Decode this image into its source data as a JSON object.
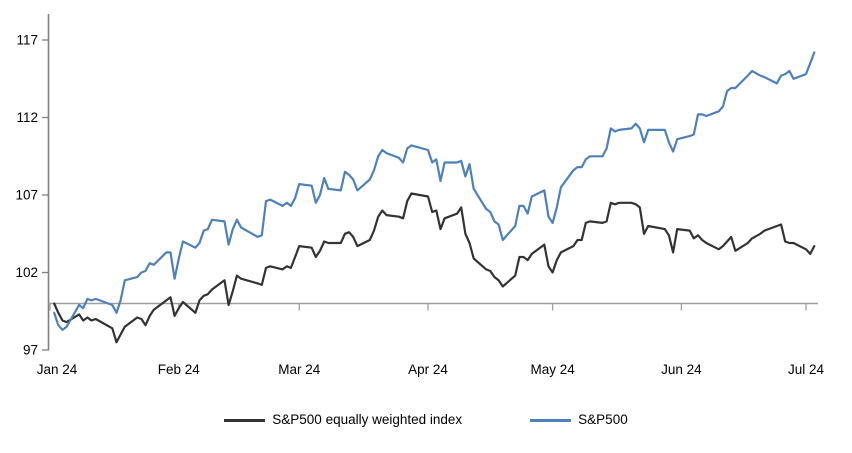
{
  "chart_data": {
    "type": "line",
    "title": "",
    "xlabel": "",
    "ylabel": "",
    "x_tick_labels": [
      "Jan 24",
      "Feb 24",
      "Mar 24",
      "Apr 24",
      "May 24",
      "Jun 24",
      "Jul 24"
    ],
    "x_tick_doy": [
      1,
      32,
      61,
      92,
      122,
      153,
      183
    ],
    "y_ticks": [
      97,
      102,
      107,
      112,
      117
    ],
    "ylim": [
      97,
      118.7
    ],
    "baseline_value": 100,
    "grid": false,
    "legend_position": "bottom-center",
    "style": {
      "axis_color": "#7f7f7f",
      "baseline_color": "#a0a0a0",
      "text_color": "#000000",
      "line_width": 2.2
    },
    "x_doy": [
      2,
      3,
      4,
      5,
      8,
      9,
      10,
      11,
      12,
      16,
      17,
      18,
      19,
      22,
      23,
      24,
      25,
      26,
      29,
      30,
      31,
      32,
      33,
      36,
      37,
      38,
      39,
      40,
      43,
      44,
      45,
      46,
      47,
      51,
      52,
      53,
      54,
      57,
      58,
      59,
      60,
      61,
      64,
      65,
      66,
      67,
      68,
      71,
      72,
      73,
      74,
      75,
      78,
      79,
      80,
      81,
      82,
      85,
      86,
      87,
      88,
      92,
      93,
      94,
      95,
      96,
      99,
      100,
      101,
      102,
      103,
      106,
      107,
      108,
      109,
      110,
      113,
      114,
      115,
      116,
      117,
      120,
      121,
      122,
      123,
      124,
      127,
      128,
      129,
      130,
      131,
      134,
      135,
      136,
      137,
      138,
      141,
      142,
      143,
      144,
      145,
      149,
      150,
      151,
      152,
      155,
      156,
      157,
      158,
      159,
      162,
      163,
      164,
      165,
      166,
      169,
      170,
      172,
      173,
      176,
      177,
      178,
      179,
      180,
      183,
      184,
      185
    ],
    "series": [
      {
        "name": "S&P500 equally weighted index",
        "color": "#333333",
        "values": [
          100.0,
          99.4,
          98.9,
          98.8,
          99.3,
          98.9,
          99.1,
          98.9,
          99.0,
          98.4,
          97.5,
          98.0,
          98.5,
          99.1,
          99.0,
          98.6,
          99.2,
          99.6,
          100.2,
          100.4,
          99.2,
          99.7,
          100.1,
          99.4,
          100.2,
          100.5,
          100.6,
          100.9,
          101.5,
          99.9,
          100.8,
          101.8,
          101.6,
          101.3,
          101.2,
          102.3,
          102.4,
          102.2,
          102.4,
          102.3,
          103.0,
          103.7,
          103.6,
          103.0,
          103.4,
          104.0,
          103.9,
          103.9,
          104.5,
          104.6,
          104.3,
          103.7,
          104.1,
          104.7,
          105.6,
          106.0,
          105.7,
          105.6,
          105.5,
          106.6,
          107.1,
          106.9,
          105.9,
          106.0,
          104.8,
          105.5,
          105.8,
          106.2,
          104.5,
          103.9,
          102.9,
          102.2,
          102.1,
          101.7,
          101.5,
          101.1,
          101.8,
          103.0,
          103.0,
          102.8,
          103.2,
          103.8,
          102.4,
          102.0,
          102.8,
          103.3,
          103.7,
          104.1,
          104.1,
          105.2,
          105.3,
          105.2,
          105.3,
          106.5,
          106.4,
          106.5,
          106.5,
          106.4,
          106.2,
          104.5,
          105.0,
          104.8,
          104.4,
          103.3,
          104.8,
          104.7,
          104.2,
          104.4,
          104.1,
          103.9,
          103.5,
          103.7,
          104.0,
          104.3,
          103.4,
          103.9,
          104.2,
          104.5,
          104.7,
          105.0,
          105.1,
          104.0,
          103.9,
          103.9,
          103.5,
          103.2,
          103.7
        ]
      },
      {
        "name": "S&P500",
        "color": "#4e81ba",
        "values": [
          99.4,
          98.6,
          98.3,
          98.5,
          99.9,
          99.7,
          100.3,
          100.2,
          100.3,
          99.9,
          99.4,
          100.2,
          101.5,
          101.7,
          102.0,
          102.1,
          102.6,
          102.5,
          103.3,
          103.3,
          101.6,
          102.9,
          104.0,
          103.6,
          103.9,
          104.7,
          104.8,
          105.4,
          105.3,
          103.8,
          104.8,
          105.4,
          104.9,
          104.3,
          104.4,
          106.6,
          106.7,
          106.3,
          106.5,
          106.3,
          106.8,
          107.7,
          107.6,
          106.5,
          107.0,
          108.1,
          107.4,
          107.3,
          108.5,
          108.3,
          108.0,
          107.3,
          108.0,
          108.6,
          109.5,
          109.9,
          109.7,
          109.4,
          109.1,
          110.0,
          110.2,
          109.9,
          109.1,
          109.3,
          107.9,
          109.1,
          109.1,
          109.2,
          108.2,
          109.0,
          107.4,
          106.1,
          105.9,
          105.3,
          105.1,
          104.1,
          105.0,
          106.3,
          106.3,
          105.8,
          106.9,
          107.3,
          105.6,
          105.2,
          106.2,
          107.5,
          108.6,
          108.8,
          108.8,
          109.3,
          109.5,
          109.5,
          110.0,
          111.3,
          111.1,
          111.2,
          111.3,
          111.6,
          111.3,
          110.4,
          111.2,
          111.2,
          110.4,
          109.8,
          110.6,
          110.8,
          110.9,
          112.2,
          112.2,
          112.1,
          112.4,
          112.7,
          113.7,
          113.9,
          113.9,
          114.7,
          115.0,
          114.7,
          114.6,
          114.2,
          114.7,
          114.8,
          115.0,
          114.5,
          114.8,
          115.5,
          116.2
        ]
      }
    ]
  },
  "legend": {
    "item1": "S&P500 equally weighted index",
    "item2": "S&P500"
  }
}
